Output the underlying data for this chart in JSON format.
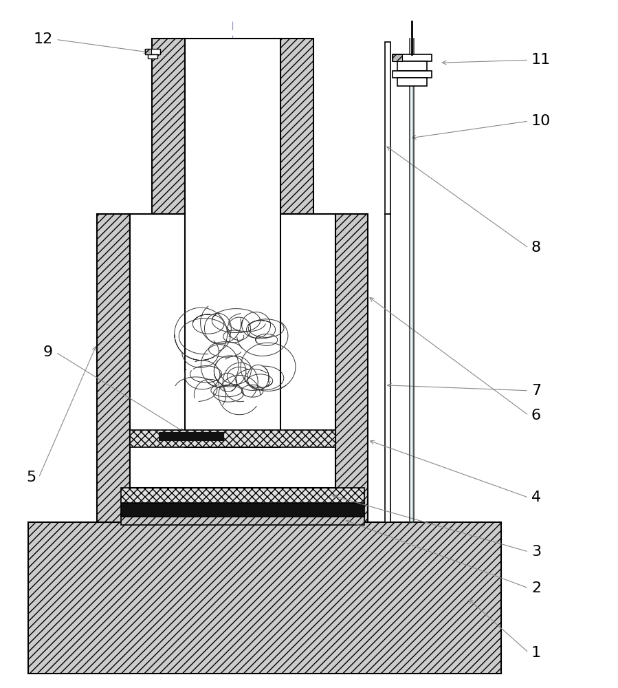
{
  "bg_color": "#ffffff",
  "lc": "#000000",
  "gray": "#999999",
  "dark_gray": "#555555",
  "hatch_fc": "#cccccc",
  "label_fs": 16,
  "ann_lw": 0.8,
  "ann_color": "#888888"
}
